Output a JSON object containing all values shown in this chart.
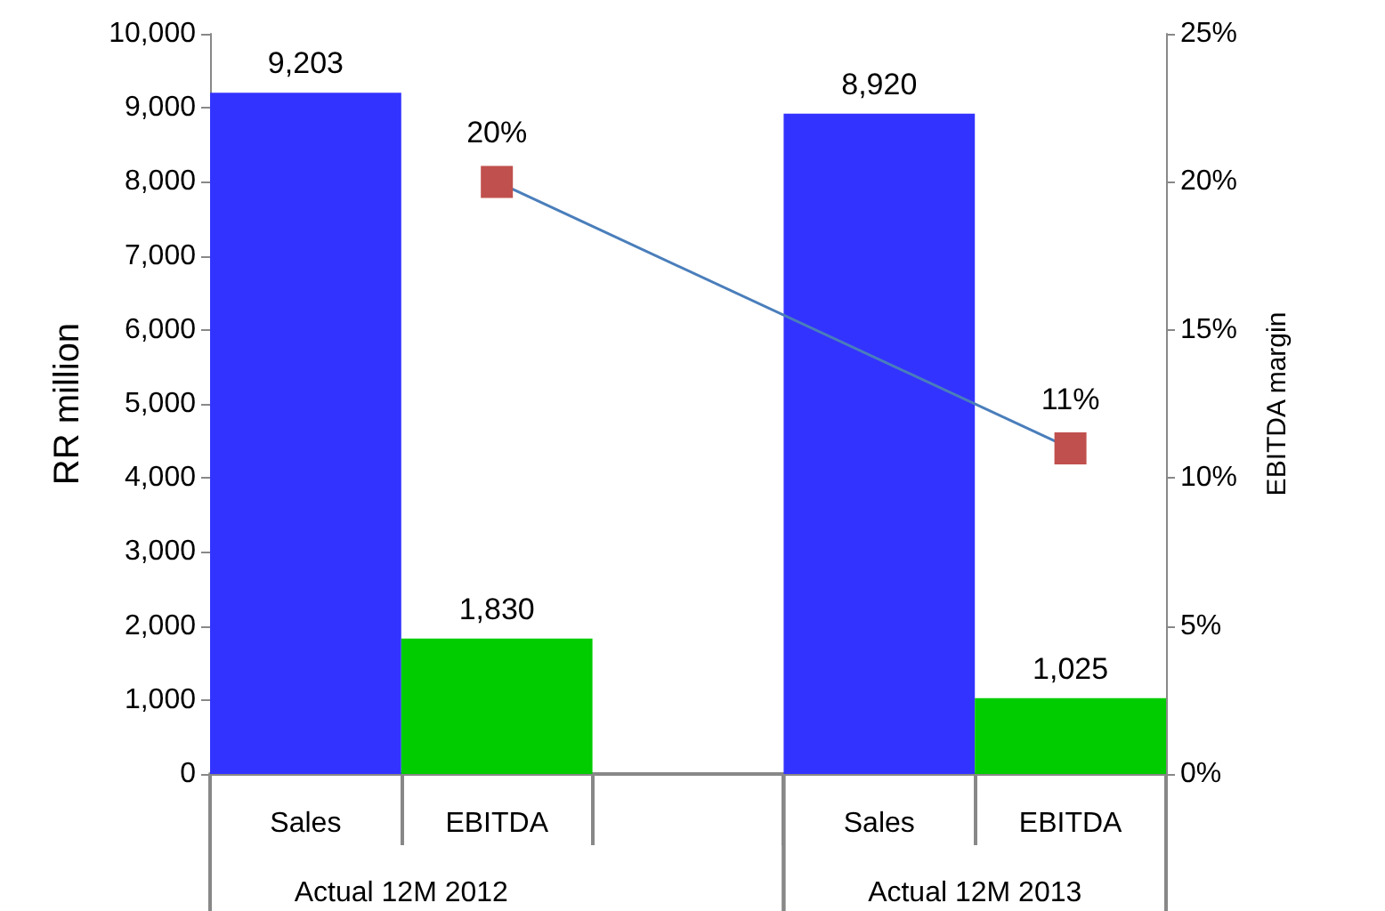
{
  "chart_data": {
    "type": "bar",
    "categories": [
      "Sales",
      "EBITDA",
      null,
      "Sales",
      "EBITDA"
    ],
    "annotations": [
      "Actual 12M 2012",
      "Actual 12M 2013"
    ],
    "ylabel": "RR million",
    "y2label": "EBITDA margin",
    "series": [
      {
        "colors": [
          "#3333ff",
          "#00cc00",
          null,
          "#3333ff",
          "#00cc00"
        ],
        "values": [
          9203,
          1830,
          null,
          8920,
          1025
        ],
        "value_labels": [
          "9,203",
          "1,830",
          null,
          "8,920",
          "1,025"
        ]
      },
      {
        "type": "line",
        "axis": "y2",
        "color": "#4a7ebb",
        "marker": "square",
        "colors": [
          null,
          "#c0504d",
          null,
          null,
          "#c0504d"
        ],
        "values": [
          null,
          20,
          null,
          null,
          11
        ],
        "value_labels": [
          null,
          "20%",
          null,
          null,
          "11%"
        ]
      }
    ],
    "ylim": [
      0,
      10000
    ],
    "yticks": [
      {
        "value": 0,
        "label": "0"
      },
      {
        "value": 1000,
        "label": "1,000"
      },
      {
        "value": 2000,
        "label": "2,000"
      },
      {
        "value": 3000,
        "label": "3,000"
      },
      {
        "value": 4000,
        "label": "4,000"
      },
      {
        "value": 5000,
        "label": "5,000"
      },
      {
        "value": 6000,
        "label": "6,000"
      },
      {
        "value": 7000,
        "label": "7,000"
      },
      {
        "value": 8000,
        "label": "8,000"
      },
      {
        "value": 9000,
        "label": "9,000"
      },
      {
        "value": 10000,
        "label": "10,000"
      }
    ],
    "y2lim": [
      0,
      25
    ],
    "y2ticks": [
      {
        "value": 0,
        "label": "0%"
      },
      {
        "value": 5,
        "label": "5%"
      },
      {
        "value": 10,
        "label": "10%"
      },
      {
        "value": 15,
        "label": "15%"
      },
      {
        "value": 20,
        "label": "20%"
      },
      {
        "value": 25,
        "label": "25%"
      }
    ],
    "grid": false
  }
}
